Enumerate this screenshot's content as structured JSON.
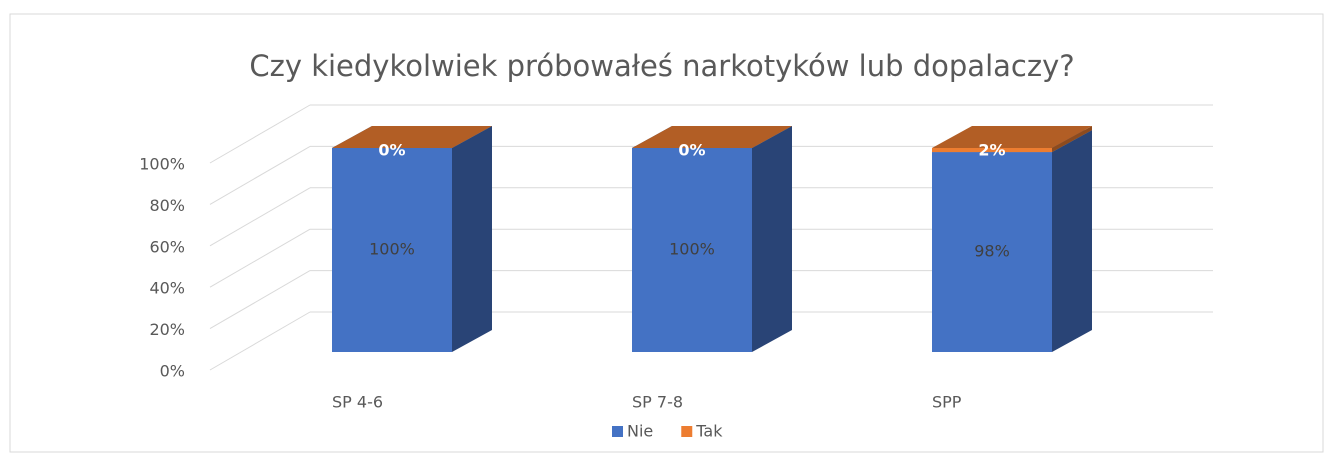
{
  "chart_data": {
    "type": "bar",
    "stacked": true,
    "three_d": true,
    "title": "Czy kiedykolwiek próbowałeś narkotyków lub dopalaczy?",
    "categories": [
      "SP 4-6",
      "SP 7-8",
      "SPP"
    ],
    "series": [
      {
        "name": "Nie",
        "color": "#4472c4",
        "values": [
          100,
          100,
          98
        ],
        "value_labels": [
          "100%",
          "100%",
          "98%"
        ]
      },
      {
        "name": "Tak",
        "color": "#ed7d31",
        "values": [
          0,
          0,
          2
        ],
        "value_labels": [
          "0%",
          "0%",
          "2%"
        ]
      }
    ],
    "ylim": [
      0,
      100
    ],
    "yticks": [
      {
        "value": 0,
        "label": "0%"
      },
      {
        "value": 20,
        "label": "20%"
      },
      {
        "value": 40,
        "label": "40%"
      },
      {
        "value": 60,
        "label": "60%"
      },
      {
        "value": 80,
        "label": "80%"
      },
      {
        "value": 100,
        "label": "100%"
      }
    ],
    "grid": true,
    "legend": "bottom"
  }
}
